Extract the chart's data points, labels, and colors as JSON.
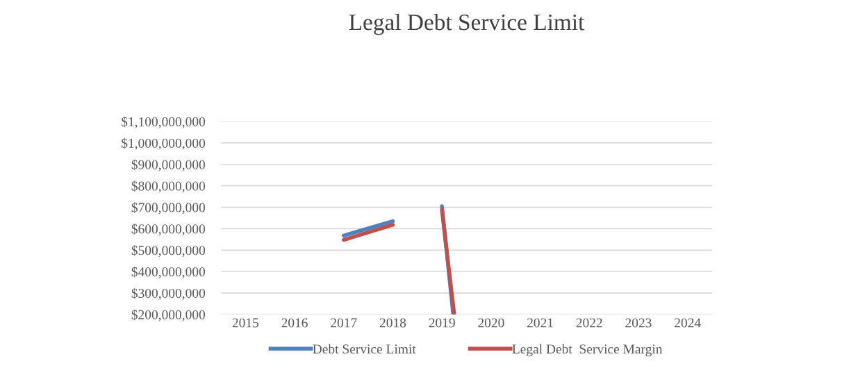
{
  "chart_data": {
    "type": "line",
    "title": "Legal Debt Service Limit",
    "series": [
      {
        "name": "Debt Service Limit",
        "color": "#4f81bd",
        "x": [
          2017,
          2018,
          2018.5,
          2019,
          2019.23
        ],
        "values": [
          568000000,
          635000000,
          null,
          705000000,
          200000000
        ]
      },
      {
        "name": "Legal Debt  Service Margin",
        "color": "#c0504d",
        "x": [
          2017,
          2018,
          2018.5,
          2019,
          2019.25
        ],
        "values": [
          548000000,
          618000000,
          null,
          688000000,
          200000000
        ]
      }
    ],
    "xlim": [
      2014.5,
      2024.5
    ],
    "xticks": [
      2015,
      2016,
      2017,
      2018,
      2019,
      2020,
      2021,
      2022,
      2023,
      2024
    ],
    "ylim": [
      200000000,
      1100000000
    ],
    "yticks": [
      {
        "value": 200000000,
        "label": "$200,000,000"
      },
      {
        "value": 300000000,
        "label": "$300,000,000"
      },
      {
        "value": 400000000,
        "label": "$400,000,000"
      },
      {
        "value": 500000000,
        "label": "$500,000,000"
      },
      {
        "value": 600000000,
        "label": "$600,000,000"
      },
      {
        "value": 700000000,
        "label": "$700,000,000"
      },
      {
        "value": 800000000,
        "label": "$800,000,000"
      },
      {
        "value": 900000000,
        "label": "$900,000,000"
      },
      {
        "value": 1000000000,
        "label": "$1,000,000,000"
      },
      {
        "value": 1100000000,
        "label": "$1,100,000,000"
      }
    ],
    "grid": "y",
    "legend": "bottom",
    "marker": "none",
    "line_style": "solid"
  }
}
